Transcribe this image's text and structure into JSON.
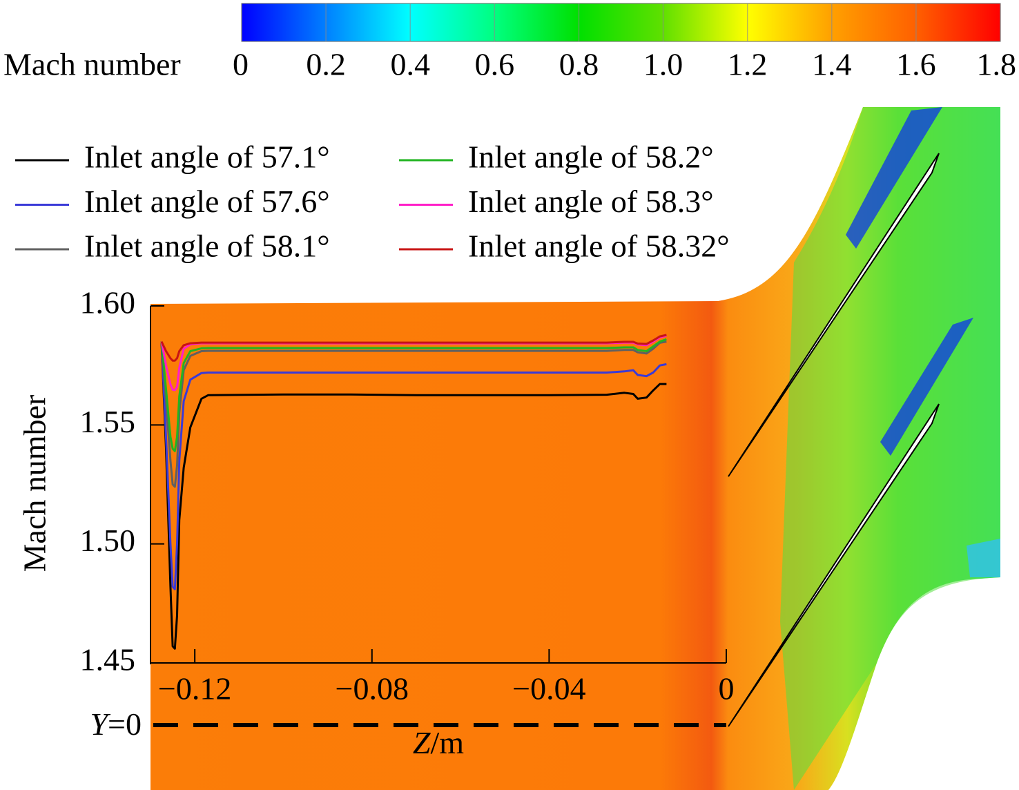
{
  "chart_data": {
    "type": "line",
    "x_label": "Z/m",
    "y_label": "Mach number",
    "reference_label": "Y=0",
    "colorbar": {
      "label": "Mach number",
      "lim": [
        0,
        1.8
      ],
      "ticks": [
        0,
        0.2,
        0.4,
        0.6,
        0.8,
        {
          "value": 1,
          "label": "1.0"
        },
        1.2,
        1.4,
        1.6,
        1.8
      ],
      "colors": [
        "#0000ff",
        "#0080ff",
        "#00ffff",
        "#00ff80",
        "#00e000",
        "#60e000",
        "#ffff00",
        "#ffa000",
        "#ff6000",
        "#ff0000"
      ]
    },
    "xlim": [
      -0.13,
      0
    ],
    "ylim": [
      1.45,
      1.6
    ],
    "xticks": [
      {
        "value": -0.12,
        "label": "−0.12"
      },
      {
        "value": -0.08,
        "label": "−0.08"
      },
      {
        "value": -0.04,
        "label": "−0.04"
      },
      0
    ],
    "yticks": [
      {
        "value": 1.6,
        "label": "1.60"
      },
      1.55,
      {
        "value": 1.5,
        "label": "1.50"
      },
      1.45
    ],
    "x": [
      -0.1275,
      -0.1265,
      -0.1255,
      -0.125,
      -0.1245,
      -0.124,
      -0.1235,
      -0.1225,
      -0.121,
      -0.1185,
      -0.117,
      -0.1,
      -0.085,
      -0.07,
      -0.055,
      -0.04,
      -0.027,
      -0.023,
      -0.021,
      -0.02,
      -0.018,
      -0.0165,
      -0.015,
      -0.0135
    ],
    "series": [
      {
        "name": "Inlet angle of 57.1°",
        "color": "#000000",
        "values": [
          1.585,
          1.54,
          1.482,
          1.457,
          1.456,
          1.47,
          1.51,
          1.532,
          1.549,
          1.561,
          1.5625,
          1.5628,
          1.5628,
          1.5625,
          1.5625,
          1.5625,
          1.5627,
          1.5635,
          1.563,
          1.561,
          1.5615,
          1.5645,
          1.5672,
          1.5672
        ]
      },
      {
        "name": "Inlet angle of 57.6°",
        "color": "#3a3ad8",
        "values": [
          1.585,
          1.545,
          1.5,
          1.482,
          1.481,
          1.5,
          1.535,
          1.56,
          1.569,
          1.5718,
          1.572,
          1.572,
          1.572,
          1.572,
          1.572,
          1.572,
          1.572,
          1.5725,
          1.573,
          1.571,
          1.5705,
          1.572,
          1.575,
          1.5755
        ]
      },
      {
        "name": "Inlet angle of 58.1°",
        "color": "#606060",
        "values": [
          1.585,
          1.56,
          1.535,
          1.525,
          1.524,
          1.533,
          1.555,
          1.573,
          1.579,
          1.581,
          1.5811,
          1.5811,
          1.5811,
          1.5811,
          1.5811,
          1.5811,
          1.5811,
          1.5815,
          1.5815,
          1.5805,
          1.58,
          1.582,
          1.5845,
          1.585
        ]
      },
      {
        "name": "Inlet angle of 58.2°",
        "color": "#22b422",
        "values": [
          1.585,
          1.565,
          1.545,
          1.54,
          1.539,
          1.545,
          1.562,
          1.576,
          1.581,
          1.5822,
          1.5823,
          1.5823,
          1.5823,
          1.5823,
          1.5823,
          1.5823,
          1.5823,
          1.5826,
          1.5826,
          1.5815,
          1.581,
          1.583,
          1.585,
          1.586
        ]
      },
      {
        "name": "Inlet angle of 58.3°",
        "color": "#ff1ec8",
        "values": [
          1.585,
          1.575,
          1.567,
          1.5648,
          1.5646,
          1.566,
          1.574,
          1.582,
          1.5838,
          1.5843,
          1.5843,
          1.5843,
          1.5843,
          1.5843,
          1.5843,
          1.5843,
          1.5843,
          1.5846,
          1.5846,
          1.5838,
          1.5835,
          1.585,
          1.5868,
          1.5875
        ]
      },
      {
        "name": "Inlet angle of 58.32°",
        "color": "#c81414",
        "values": [
          1.585,
          1.581,
          1.578,
          1.577,
          1.577,
          1.578,
          1.581,
          1.5835,
          1.5843,
          1.5846,
          1.5846,
          1.5846,
          1.5846,
          1.5846,
          1.5846,
          1.5846,
          1.5846,
          1.5849,
          1.5849,
          1.5842,
          1.584,
          1.5855,
          1.5872,
          1.5878
        ]
      }
    ]
  }
}
